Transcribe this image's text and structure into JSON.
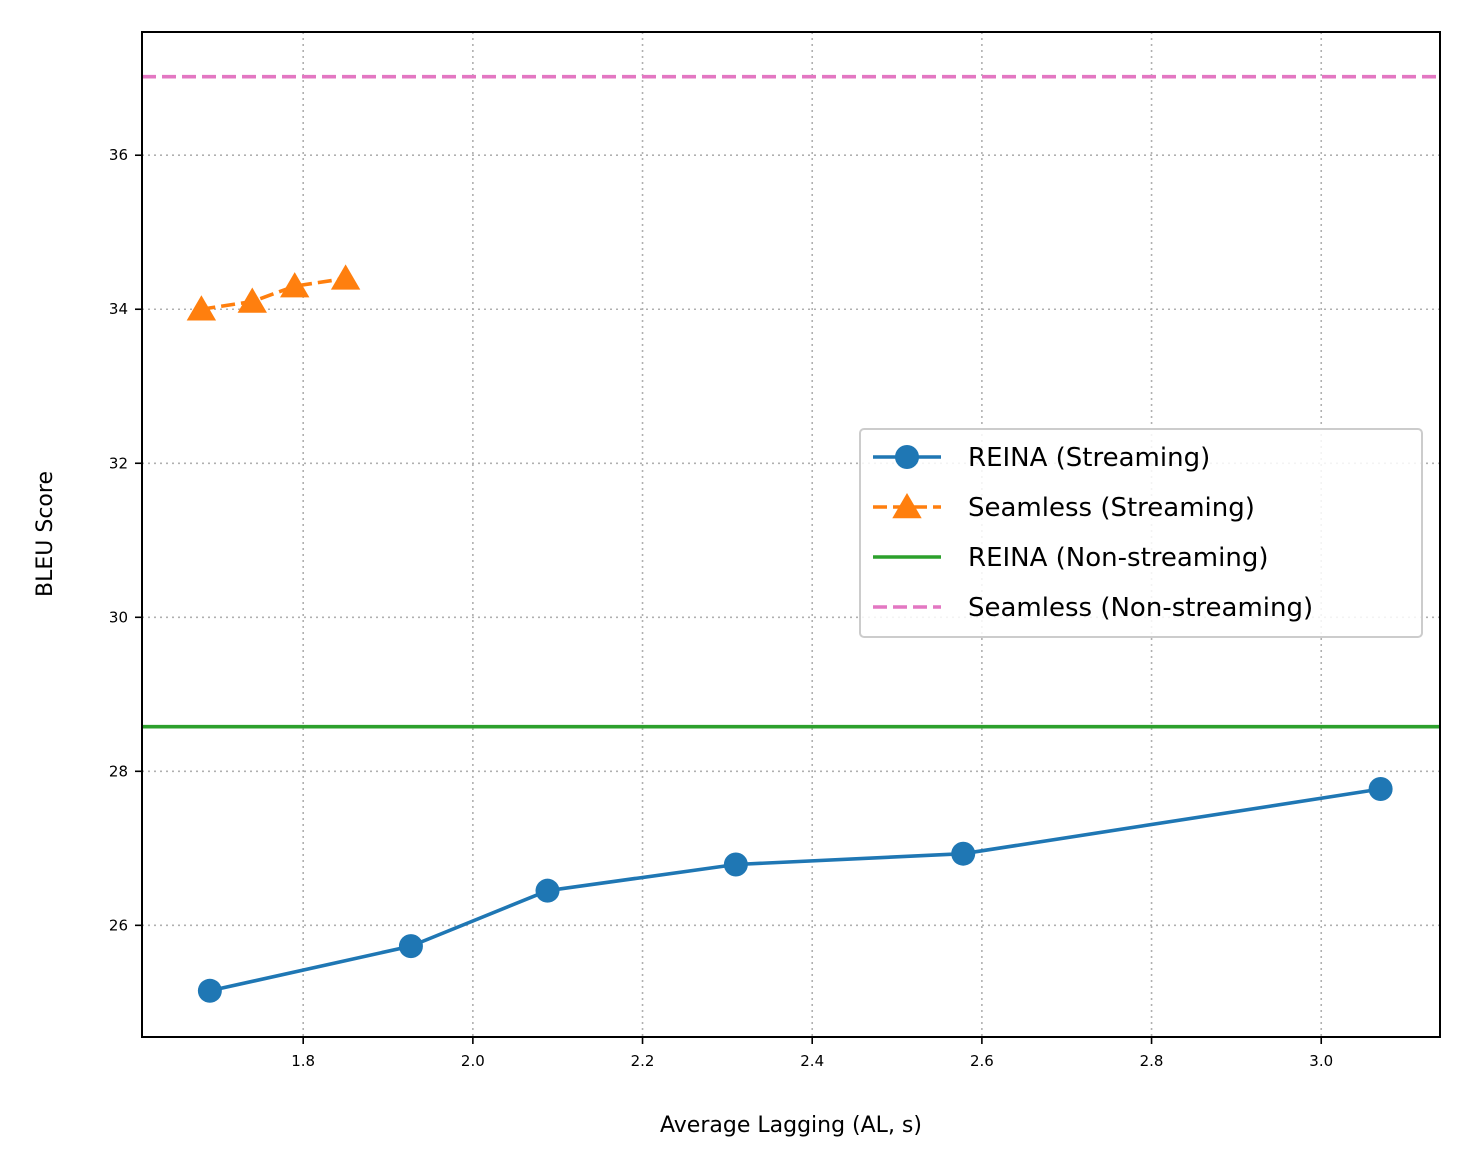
{
  "chart_data": {
    "type": "line",
    "title": "",
    "xlabel": "Average Lagging (AL, s)",
    "ylabel": "BLEU Score",
    "xlim": [
      1.61,
      3.14
    ],
    "ylim": [
      24.55,
      37.6
    ],
    "xticks": [
      1.8,
      2.0,
      2.2,
      2.4,
      2.6,
      2.8,
      3.0
    ],
    "xtick_labels": [
      "1.8",
      "2.0",
      "2.2",
      "2.4",
      "2.6",
      "2.8",
      "3.0"
    ],
    "yticks": [
      26,
      28,
      30,
      32,
      34,
      36
    ],
    "ytick_labels": [
      "26",
      "28",
      "30",
      "32",
      "34",
      "36"
    ],
    "grid": true,
    "legend_position": "center-right",
    "series": [
      {
        "name": "REINA (Streaming)",
        "kind": "line",
        "color": "#1f77b4",
        "marker": "circle",
        "dash": "solid",
        "x": [
          1.69,
          1.927,
          2.088,
          2.31,
          2.578,
          3.07
        ],
        "y": [
          25.15,
          25.73,
          26.45,
          26.79,
          26.93,
          27.77
        ]
      },
      {
        "name": "Seamless (Streaming)",
        "kind": "line",
        "color": "#ff7f0e",
        "marker": "triangle",
        "dash": "dashed",
        "x": [
          1.68,
          1.74,
          1.79,
          1.85
        ],
        "y": [
          34.0,
          34.1,
          34.3,
          34.4
        ]
      },
      {
        "name": "REINA (Non-streaming)",
        "kind": "hline",
        "color": "#2ca02c",
        "dash": "solid",
        "y": 28.58
      },
      {
        "name": "Seamless (Non-streaming)",
        "kind": "hline",
        "color": "#e377c2",
        "dash": "dashed",
        "y": 37.02
      }
    ]
  }
}
